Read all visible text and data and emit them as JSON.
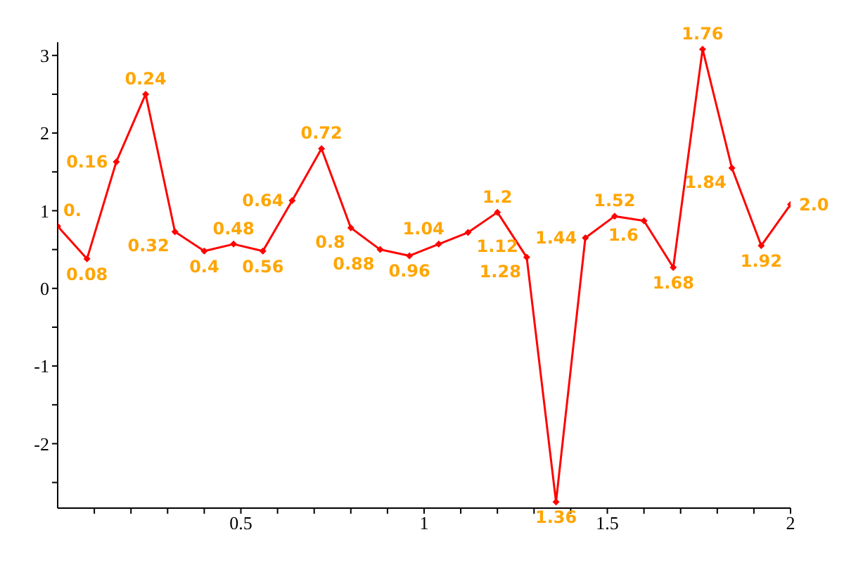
{
  "chart_data": {
    "type": "line",
    "x": [
      0,
      0.08,
      0.16,
      0.24,
      0.32,
      0.4,
      0.48,
      0.56,
      0.64,
      0.72,
      0.8,
      0.88,
      0.96,
      1.04,
      1.12,
      1.2,
      1.28,
      1.36,
      1.44,
      1.52,
      1.6,
      1.68,
      1.76,
      1.84,
      1.92,
      2.0
    ],
    "series": [
      {
        "color": "#ff0000",
        "values": [
          0.8,
          0.38,
          1.63,
          2.5,
          0.73,
          0.48,
          0.57,
          0.48,
          1.13,
          1.8,
          0.78,
          0.5,
          0.42,
          0.57,
          0.72,
          0.98,
          0.4,
          -2.75,
          0.65,
          0.93,
          0.87,
          0.27,
          3.08,
          1.55,
          0.55,
          1.08
        ]
      }
    ],
    "annotations": [
      {
        "text": "0.",
        "x": 0,
        "y": 0.8
      },
      {
        "text": "0.08",
        "x": 0.08,
        "y": 0.38
      },
      {
        "text": "0.16",
        "x": 0.16,
        "y": 1.63
      },
      {
        "text": "0.24",
        "x": 0.24,
        "y": 2.5
      },
      {
        "text": "0.32",
        "x": 0.32,
        "y": 0.73
      },
      {
        "text": "0.4",
        "x": 0.4,
        "y": 0.48
      },
      {
        "text": "0.48",
        "x": 0.48,
        "y": 0.57
      },
      {
        "text": "0.56",
        "x": 0.56,
        "y": 0.48
      },
      {
        "text": "0.64",
        "x": 0.64,
        "y": 1.13
      },
      {
        "text": "0.72",
        "x": 0.72,
        "y": 1.8
      },
      {
        "text": "0.8",
        "x": 0.8,
        "y": 0.78
      },
      {
        "text": "0.88",
        "x": 0.88,
        "y": 0.5
      },
      {
        "text": "0.96",
        "x": 0.96,
        "y": 0.42
      },
      {
        "text": "1.04",
        "x": 1.04,
        "y": 0.57
      },
      {
        "text": "1.12",
        "x": 1.12,
        "y": 0.72
      },
      {
        "text": "1.2",
        "x": 1.2,
        "y": 0.98
      },
      {
        "text": "1.28",
        "x": 1.28,
        "y": 0.4
      },
      {
        "text": "1.36",
        "x": 1.36,
        "y": -2.75
      },
      {
        "text": "1.44",
        "x": 1.44,
        "y": 0.65
      },
      {
        "text": "1.52",
        "x": 1.52,
        "y": 0.93
      },
      {
        "text": "1.6",
        "x": 1.6,
        "y": 0.87
      },
      {
        "text": "1.68",
        "x": 1.68,
        "y": 0.27
      },
      {
        "text": "1.76",
        "x": 1.76,
        "y": 3.08
      },
      {
        "text": "1.84",
        "x": 1.84,
        "y": 1.55
      },
      {
        "text": "1.92",
        "x": 1.92,
        "y": 0.55
      },
      {
        "text": "2.0",
        "x": 2.0,
        "y": 1.08
      }
    ],
    "xlim": [
      0,
      2
    ],
    "xticks": [
      {
        "value": 0.1,
        "label": null
      },
      {
        "value": 0.2,
        "label": null
      },
      {
        "value": 0.3,
        "label": null
      },
      {
        "value": 0.4,
        "label": null
      },
      0.5,
      {
        "value": 0.6,
        "label": null
      },
      {
        "value": 0.7,
        "label": null
      },
      {
        "value": 0.8,
        "label": null
      },
      {
        "value": 0.9,
        "label": null
      },
      1,
      {
        "value": 1.1,
        "label": null
      },
      {
        "value": 1.2,
        "label": null
      },
      {
        "value": 1.3,
        "label": null
      },
      {
        "value": 1.4,
        "label": null
      },
      1.5,
      {
        "value": 1.6,
        "label": null
      },
      {
        "value": 1.7,
        "label": null
      },
      {
        "value": 1.8,
        "label": null
      },
      {
        "value": 1.9,
        "label": null
      },
      2
    ],
    "ylim": [
      -2.83,
      3.17
    ],
    "yticks": [
      {
        "value": -2.5,
        "label": null
      },
      -2,
      {
        "value": -1.5,
        "label": null
      },
      -1,
      {
        "value": -0.5,
        "label": null
      },
      0,
      {
        "value": 0.5,
        "label": null
      },
      1,
      {
        "value": 1.5,
        "label": null
      },
      2,
      {
        "value": 2.5,
        "label": null
      },
      3
    ],
    "grid": false,
    "legend": false,
    "marker": "diamond",
    "line_style": "solid"
  }
}
